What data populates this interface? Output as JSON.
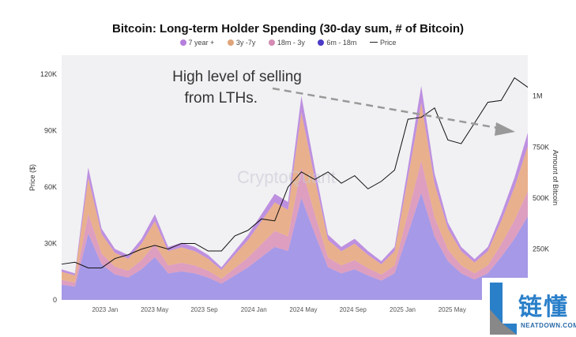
{
  "chart_data": {
    "type": "area",
    "title": "Bitcoin: Long-term Holder Spending (30-day sum, # of Bitcoin)",
    "ylabel_left": "Price ($)",
    "ylabel_right": "Amount of Bitcoin",
    "ylim_left": [
      0,
      130000
    ],
    "ylim_right": [
      0,
      1200000
    ],
    "left_ticks": [
      {
        "v": 0,
        "label": "0"
      },
      {
        "v": 30000,
        "label": "30K"
      },
      {
        "v": 60000,
        "label": "60K"
      },
      {
        "v": 90000,
        "label": "90K"
      },
      {
        "v": 120000,
        "label": "120K"
      }
    ],
    "right_ticks": [
      {
        "v": 250000,
        "label": "250K"
      },
      {
        "v": 500000,
        "label": "500K"
      },
      {
        "v": 750000,
        "label": "750K"
      },
      {
        "v": 1000000,
        "label": "1M"
      }
    ],
    "x_ticks": [
      {
        "m": 3.5,
        "label": "2023 Jan"
      },
      {
        "m": 7.5,
        "label": "2023 May"
      },
      {
        "m": 11.5,
        "label": "2023 Sep"
      },
      {
        "m": 15.5,
        "label": "2024 Jan"
      },
      {
        "m": 19.5,
        "label": "2024 May"
      },
      {
        "m": 23.5,
        "label": "2024 Sep"
      },
      {
        "m": 27.5,
        "label": "2025 Jan"
      },
      {
        "m": 31.5,
        "label": "2025 May"
      }
    ],
    "x_range_months": [
      0,
      37.6
    ],
    "series": [
      {
        "name": "6m - 18m",
        "color": "#9d8fe6",
        "values": [
          75,
          65,
          325,
          175,
          125,
          110,
          150,
          210,
          130,
          140,
          130,
          110,
          80,
          120,
          160,
          210,
          260,
          240,
          500,
          325,
          160,
          130,
          150,
          120,
          95,
          130,
          325,
          525,
          310,
          190,
          130,
          100,
          130,
          210,
          300,
          410
        ]
      },
      {
        "name": "18m - 3y",
        "color": "#d98fb6",
        "values": [
          23,
          20,
          98,
          53,
          38,
          33,
          45,
          63,
          39,
          42,
          39,
          33,
          24,
          36,
          48,
          63,
          78,
          72,
          150,
          98,
          48,
          39,
          45,
          36,
          29,
          39,
          98,
          158,
          93,
          57,
          39,
          30,
          39,
          63,
          90,
          123
        ]
      },
      {
        "name": "3y -7y",
        "color": "#e8a57a",
        "values": [
          40,
          35,
          175,
          95,
          68,
          59,
          81,
          113,
          70,
          76,
          70,
          59,
          43,
          65,
          86,
          113,
          140,
          130,
          270,
          175,
          86,
          70,
          81,
          65,
          51,
          70,
          175,
          284,
          167,
          103,
          70,
          54,
          70,
          113,
          162,
          221
        ]
      },
      {
        "name": "7 year +",
        "color": "#b57fdc",
        "values": [
          12,
          10,
          52,
          27,
          19,
          18,
          24,
          34,
          21,
          22,
          21,
          18,
          13,
          19,
          26,
          34,
          42,
          38,
          80,
          52,
          26,
          21,
          24,
          19,
          15,
          21,
          52,
          83,
          50,
          30,
          21,
          16,
          21,
          34,
          48,
          66
        ]
      }
    ],
    "series_units": "thousand BTC",
    "price": {
      "name": "Price",
      "color": "#111111",
      "values_k": [
        19,
        20,
        17,
        17,
        22,
        24,
        27,
        29,
        27,
        30,
        30,
        26,
        26,
        34,
        37,
        43,
        42,
        60,
        68,
        64,
        68,
        62,
        66,
        59,
        63,
        69,
        96,
        97,
        102,
        85,
        83,
        94,
        105,
        106,
        118,
        113
      ]
    },
    "legend": [
      {
        "label": "7 year +",
        "color": "#b57fdc"
      },
      {
        "label": "3y -7y",
        "color": "#e0a47a"
      },
      {
        "label": "18m - 3y",
        "color": "#d48bb3"
      },
      {
        "label": "6m - 18m",
        "color": "#4b3bc7"
      },
      {
        "label": "Price",
        "color": "#222222"
      }
    ],
    "annotation": {
      "line1": "High level of selling",
      "line2": "from LTHs."
    },
    "watermark": "CryptoQuant"
  },
  "logo": {
    "cn": "链懂",
    "en": "NEATDOWN.COM"
  }
}
